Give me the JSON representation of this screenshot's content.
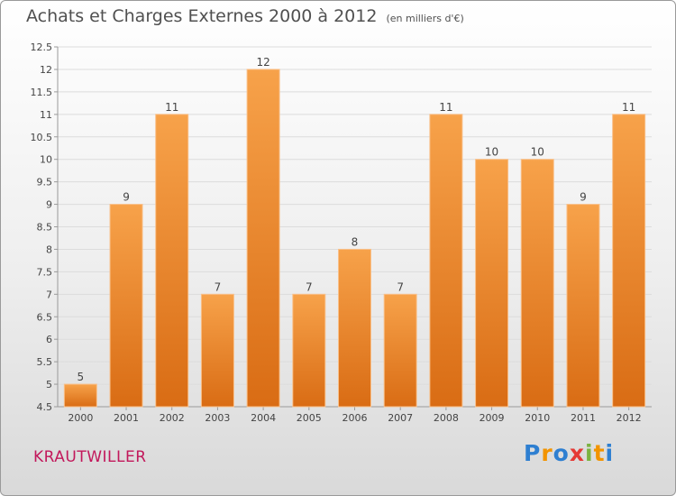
{
  "title": "Achats et Charges Externes 2000 à 2012",
  "subtitle": "(en milliers d'€)",
  "place": "KRAUTWILLER",
  "logo": {
    "letters": [
      "P",
      "r",
      "o",
      "x",
      "i",
      "t",
      "i"
    ],
    "colors": [
      "#2e7fd1",
      "#f29400",
      "#2e7fd1",
      "#e53935",
      "#7cb342",
      "#f29400",
      "#2e7fd1"
    ]
  },
  "colors": {
    "bar_light": "#f7a24a",
    "bar_dark": "#d96c14",
    "bar_edge": "#f9c089"
  },
  "chart_data": {
    "type": "bar",
    "categories": [
      "2000",
      "2001",
      "2002",
      "2003",
      "2004",
      "2005",
      "2006",
      "2007",
      "2008",
      "2009",
      "2010",
      "2011",
      "2012"
    ],
    "values": [
      5,
      9,
      11,
      7,
      12,
      7,
      8,
      7,
      11,
      10,
      10,
      9,
      11
    ],
    "value_labels": [
      "5",
      "9",
      "11",
      "7",
      "12",
      "7",
      "8",
      "7",
      "11",
      "10",
      "10",
      "9",
      "11"
    ],
    "ylim": [
      4.5,
      12.5
    ],
    "yticks": [
      "4.5",
      "5",
      "5.5",
      "6",
      "6.5",
      "7",
      "7.5",
      "8",
      "8.5",
      "9",
      "9.5",
      "10",
      "10.5",
      "11",
      "11.5",
      "12",
      "12.5"
    ],
    "grid": true
  }
}
